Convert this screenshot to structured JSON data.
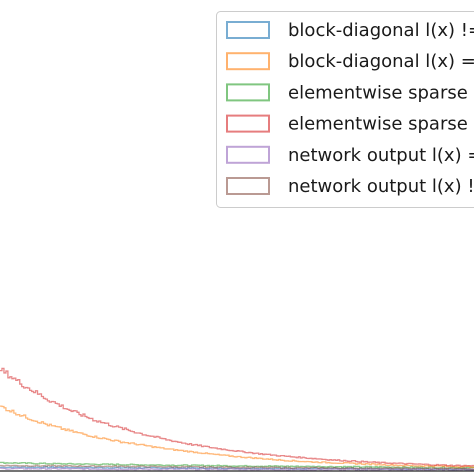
{
  "chart_data": {
    "type": "area",
    "title": "",
    "xlabel": "",
    "ylabel": "",
    "grid": false,
    "legend": "top-right",
    "note": "Cropped view; values estimated relative to visible plot range (x: 0-100, y: 0-100).",
    "xlim": [
      0,
      100
    ],
    "ylim": [
      0,
      100
    ],
    "series": [
      {
        "name": "block-diagonal l(x) !=",
        "color": "#1f77b4",
        "x": [
          0,
          10,
          25,
          50,
          75,
          100
        ],
        "y": [
          0.8,
          0.8,
          0.7,
          0.6,
          0.5,
          0.4
        ]
      },
      {
        "name": "block-diagonal l(x) =",
        "color": "#ff7f0e",
        "x": [
          0,
          5,
          10,
          15,
          20,
          25,
          30,
          35,
          40,
          45,
          50,
          55,
          60,
          65,
          70,
          75,
          80,
          85,
          90,
          95,
          100
        ],
        "y": [
          14.0,
          11.8,
          10.0,
          8.6,
          7.4,
          6.4,
          5.6,
          4.8,
          4.2,
          3.6,
          3.1,
          2.7,
          2.3,
          2.0,
          1.8,
          1.6,
          1.4,
          1.2,
          1.1,
          1.0,
          0.9
        ]
      },
      {
        "name": "elementwise sparse",
        "color": "#2ca02c",
        "x": [
          0,
          10,
          25,
          50,
          75,
          100
        ],
        "y": [
          1.8,
          1.6,
          1.4,
          1.1,
          0.9,
          0.7
        ]
      },
      {
        "name": "elementwise sparse",
        "color": "#d62728",
        "x": [
          0,
          5,
          10,
          15,
          20,
          25,
          30,
          35,
          40,
          45,
          50,
          55,
          60,
          65,
          70,
          75,
          80,
          85,
          90,
          95,
          100
        ],
        "y": [
          22.0,
          18.5,
          15.5,
          13.0,
          11.0,
          9.4,
          8.0,
          6.8,
          5.8,
          5.0,
          4.3,
          3.7,
          3.2,
          2.8,
          2.4,
          2.1,
          1.8,
          1.6,
          1.4,
          1.2,
          1.1
        ]
      },
      {
        "name": "network output l(x) =",
        "color": "#9467bd",
        "x": [
          0,
          10,
          25,
          50,
          75,
          100
        ],
        "y": [
          0.5,
          0.5,
          0.4,
          0.4,
          0.3,
          0.3
        ]
      },
      {
        "name": "network output l(x) !=",
        "color": "#8c564b",
        "x": [
          0,
          10,
          25,
          50,
          75,
          100
        ],
        "y": [
          1.2,
          1.1,
          1.0,
          0.8,
          0.6,
          0.5
        ]
      }
    ]
  }
}
